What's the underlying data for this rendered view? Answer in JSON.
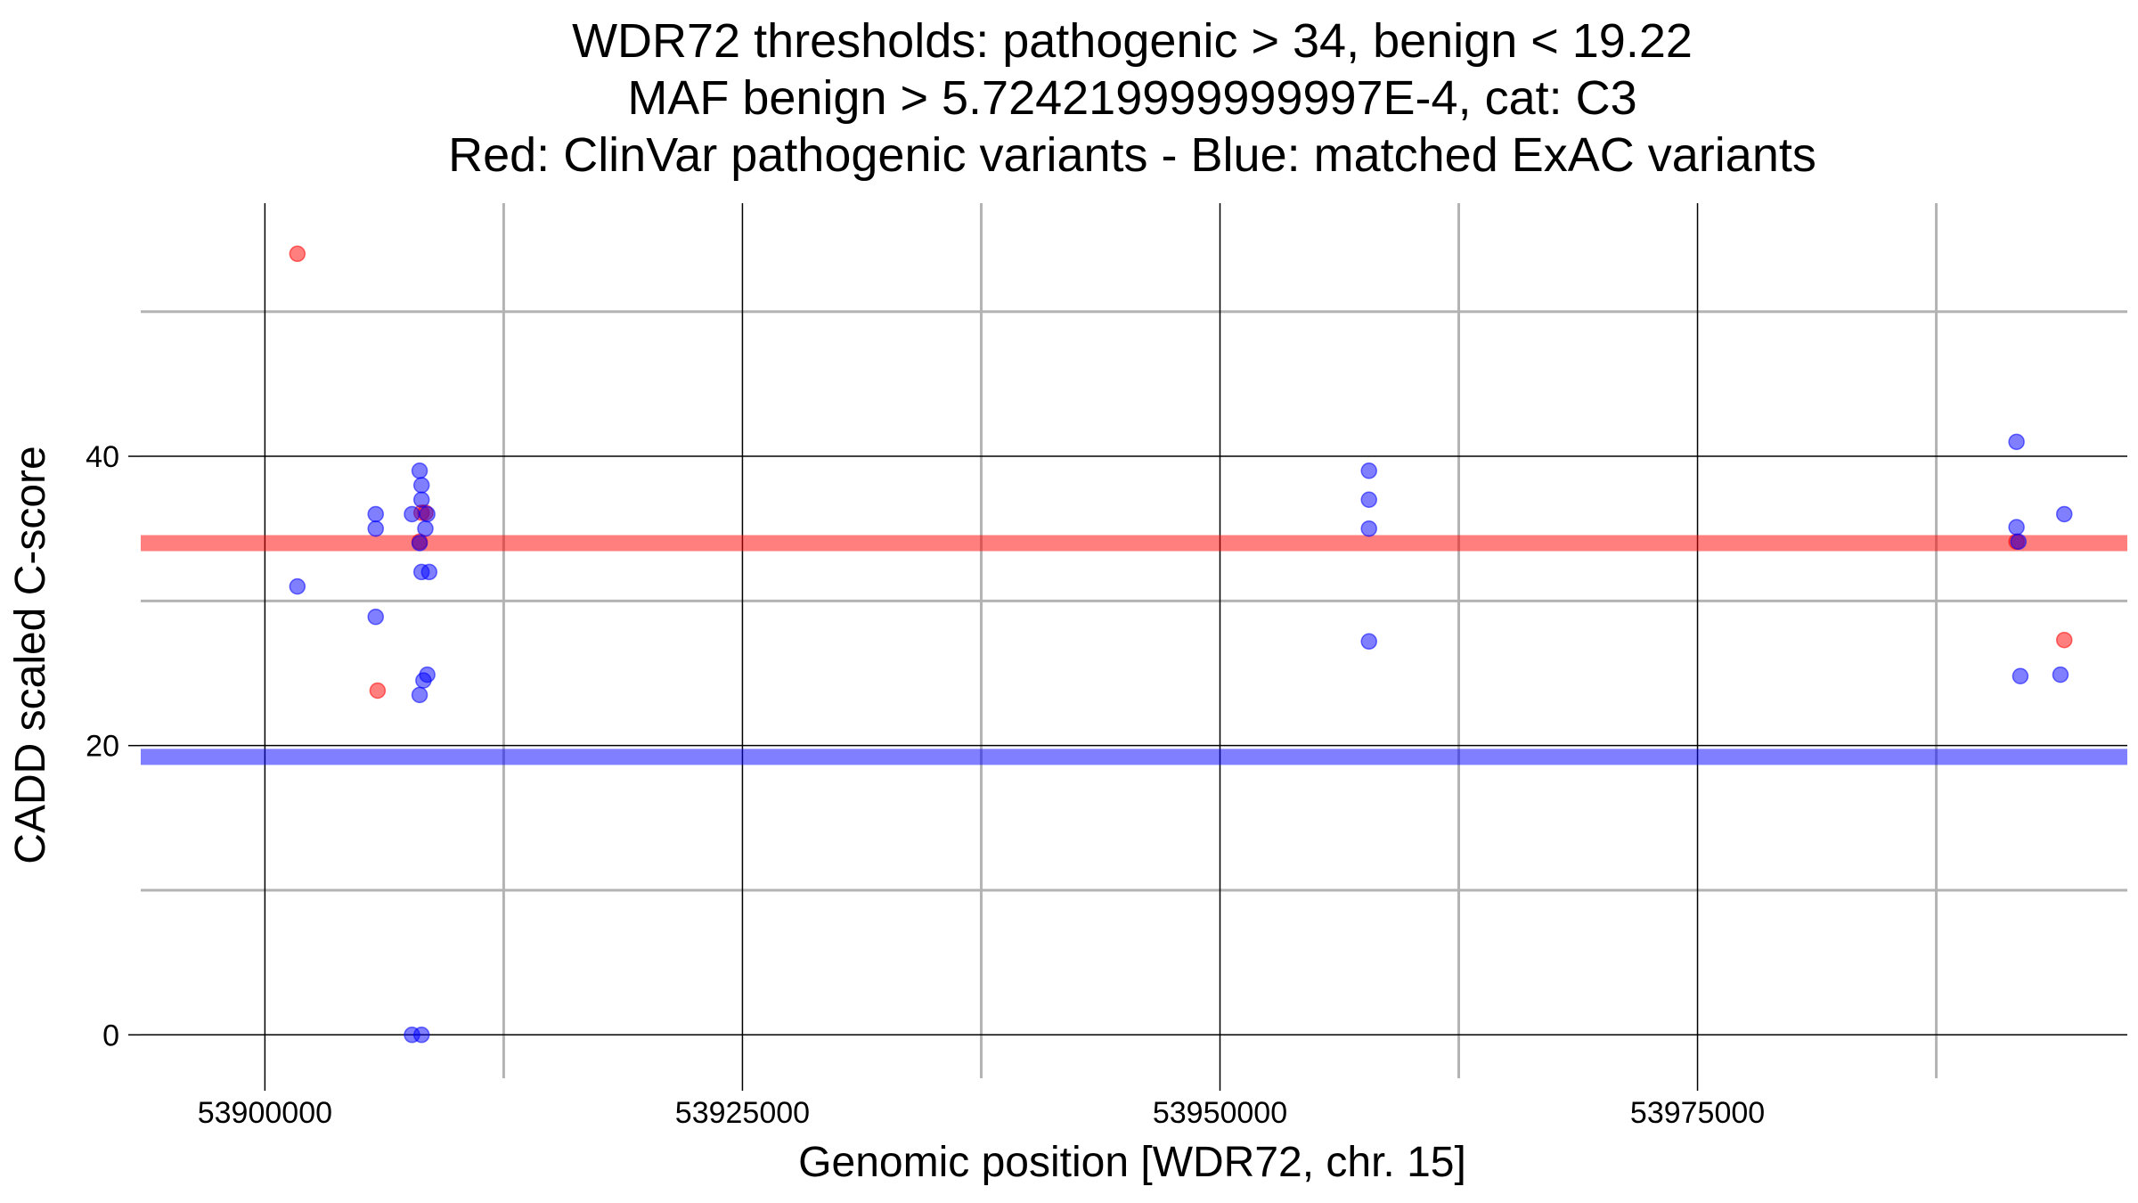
{
  "chart_data": {
    "type": "scatter",
    "title_lines": [
      "WDR72 thresholds: pathogenic > 34, benign < 19.22",
      "MAF benign > 5.724219999999997E-4, cat: C3",
      "Red: ClinVar pathogenic variants - Blue: matched ExAC variants"
    ],
    "xlabel": "Genomic position [WDR72, chr. 15]",
    "ylabel": "CADD scaled C-score",
    "xlim": [
      53893500,
      53997500
    ],
    "ylim": [
      -3,
      57.5
    ],
    "x_major_ticks": [
      53900000,
      53925000,
      53950000,
      53975000
    ],
    "x_tick_labels": [
      "53900000",
      "53925000",
      "53950000",
      "53975000"
    ],
    "x_minor_gridlines": [
      53912500,
      53937500,
      53962500,
      53987500
    ],
    "y_major_ticks": [
      0,
      20,
      40
    ],
    "y_tick_labels": [
      "0",
      "20",
      "40"
    ],
    "y_minor_gridlines": [
      10,
      30,
      50
    ],
    "grid": true,
    "legend": "none",
    "thresholds": [
      {
        "kind": "pathogenic",
        "value": 34,
        "color": "#ff0000"
      },
      {
        "kind": "benign",
        "value": 19.22,
        "color": "#0000ff"
      }
    ],
    "series": [
      {
        "color": "#ff0000",
        "points": [
          {
            "x": 53901700,
            "y": 54
          },
          {
            "x": 53905900,
            "y": 23.8
          },
          {
            "x": 53908200,
            "y": 36.1
          },
          {
            "x": 53908400,
            "y": 36.1
          },
          {
            "x": 53908100,
            "y": 34.1
          },
          {
            "x": 53991700,
            "y": 34.1
          },
          {
            "x": 53994200,
            "y": 27.3
          }
        ]
      },
      {
        "color": "#0000ff",
        "points": [
          {
            "x": 53901700,
            "y": 31
          },
          {
            "x": 53905800,
            "y": 36
          },
          {
            "x": 53905800,
            "y": 35
          },
          {
            "x": 53905800,
            "y": 28.9
          },
          {
            "x": 53907700,
            "y": 36
          },
          {
            "x": 53908100,
            "y": 39
          },
          {
            "x": 53908200,
            "y": 38
          },
          {
            "x": 53908200,
            "y": 37
          },
          {
            "x": 53908500,
            "y": 36
          },
          {
            "x": 53908400,
            "y": 35
          },
          {
            "x": 53908100,
            "y": 34
          },
          {
            "x": 53908200,
            "y": 32
          },
          {
            "x": 53908600,
            "y": 32
          },
          {
            "x": 53908500,
            "y": 24.9
          },
          {
            "x": 53908300,
            "y": 24.5
          },
          {
            "x": 53908100,
            "y": 23.5
          },
          {
            "x": 53907700,
            "y": 0
          },
          {
            "x": 53908200,
            "y": 0
          },
          {
            "x": 53957800,
            "y": 39
          },
          {
            "x": 53957800,
            "y": 37
          },
          {
            "x": 53957800,
            "y": 35
          },
          {
            "x": 53957800,
            "y": 27.2
          },
          {
            "x": 53991700,
            "y": 41
          },
          {
            "x": 53991700,
            "y": 35.1
          },
          {
            "x": 53991800,
            "y": 34.1
          },
          {
            "x": 53994200,
            "y": 36
          },
          {
            "x": 53991900,
            "y": 24.8
          },
          {
            "x": 53994000,
            "y": 24.9
          }
        ]
      }
    ]
  }
}
